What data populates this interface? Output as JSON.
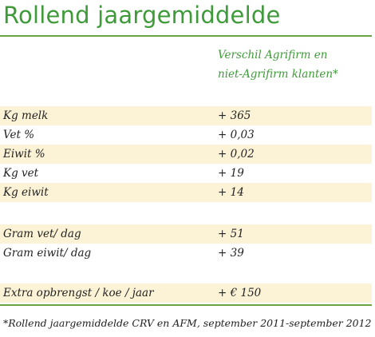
{
  "title": "Rollend jaargemiddelde",
  "header": {
    "line1": "Verschil Agrifirm en",
    "line2": "niet-Agrifirm klanten*"
  },
  "colors": {
    "title_green": "#3f9a3a",
    "rule_green": "#6aa443",
    "row_shade": "#fcf2d6"
  },
  "rows": [
    {
      "label": "Kg melk",
      "value": "+ 365"
    },
    {
      "label": "Vet %",
      "value": "+ 0,03"
    },
    {
      "label": "Eiwit %",
      "value": "+ 0,02"
    },
    {
      "label": "Kg vet",
      "value": "+ 19"
    },
    {
      "label": "Kg eiwit",
      "value": "+ 14"
    },
    {
      "label": "",
      "value": ""
    },
    {
      "label": "Gram vet/ dag",
      "value": "+ 51"
    },
    {
      "label": "Gram eiwit/ dag",
      "value": "+ 39"
    },
    {
      "label": "",
      "value": ""
    },
    {
      "label": "Extra opbrengst / koe / jaar",
      "value": "+ € 150"
    }
  ],
  "footnote": "*Rollend jaargemiddelde CRV en AFM, september 2011-september 2012"
}
